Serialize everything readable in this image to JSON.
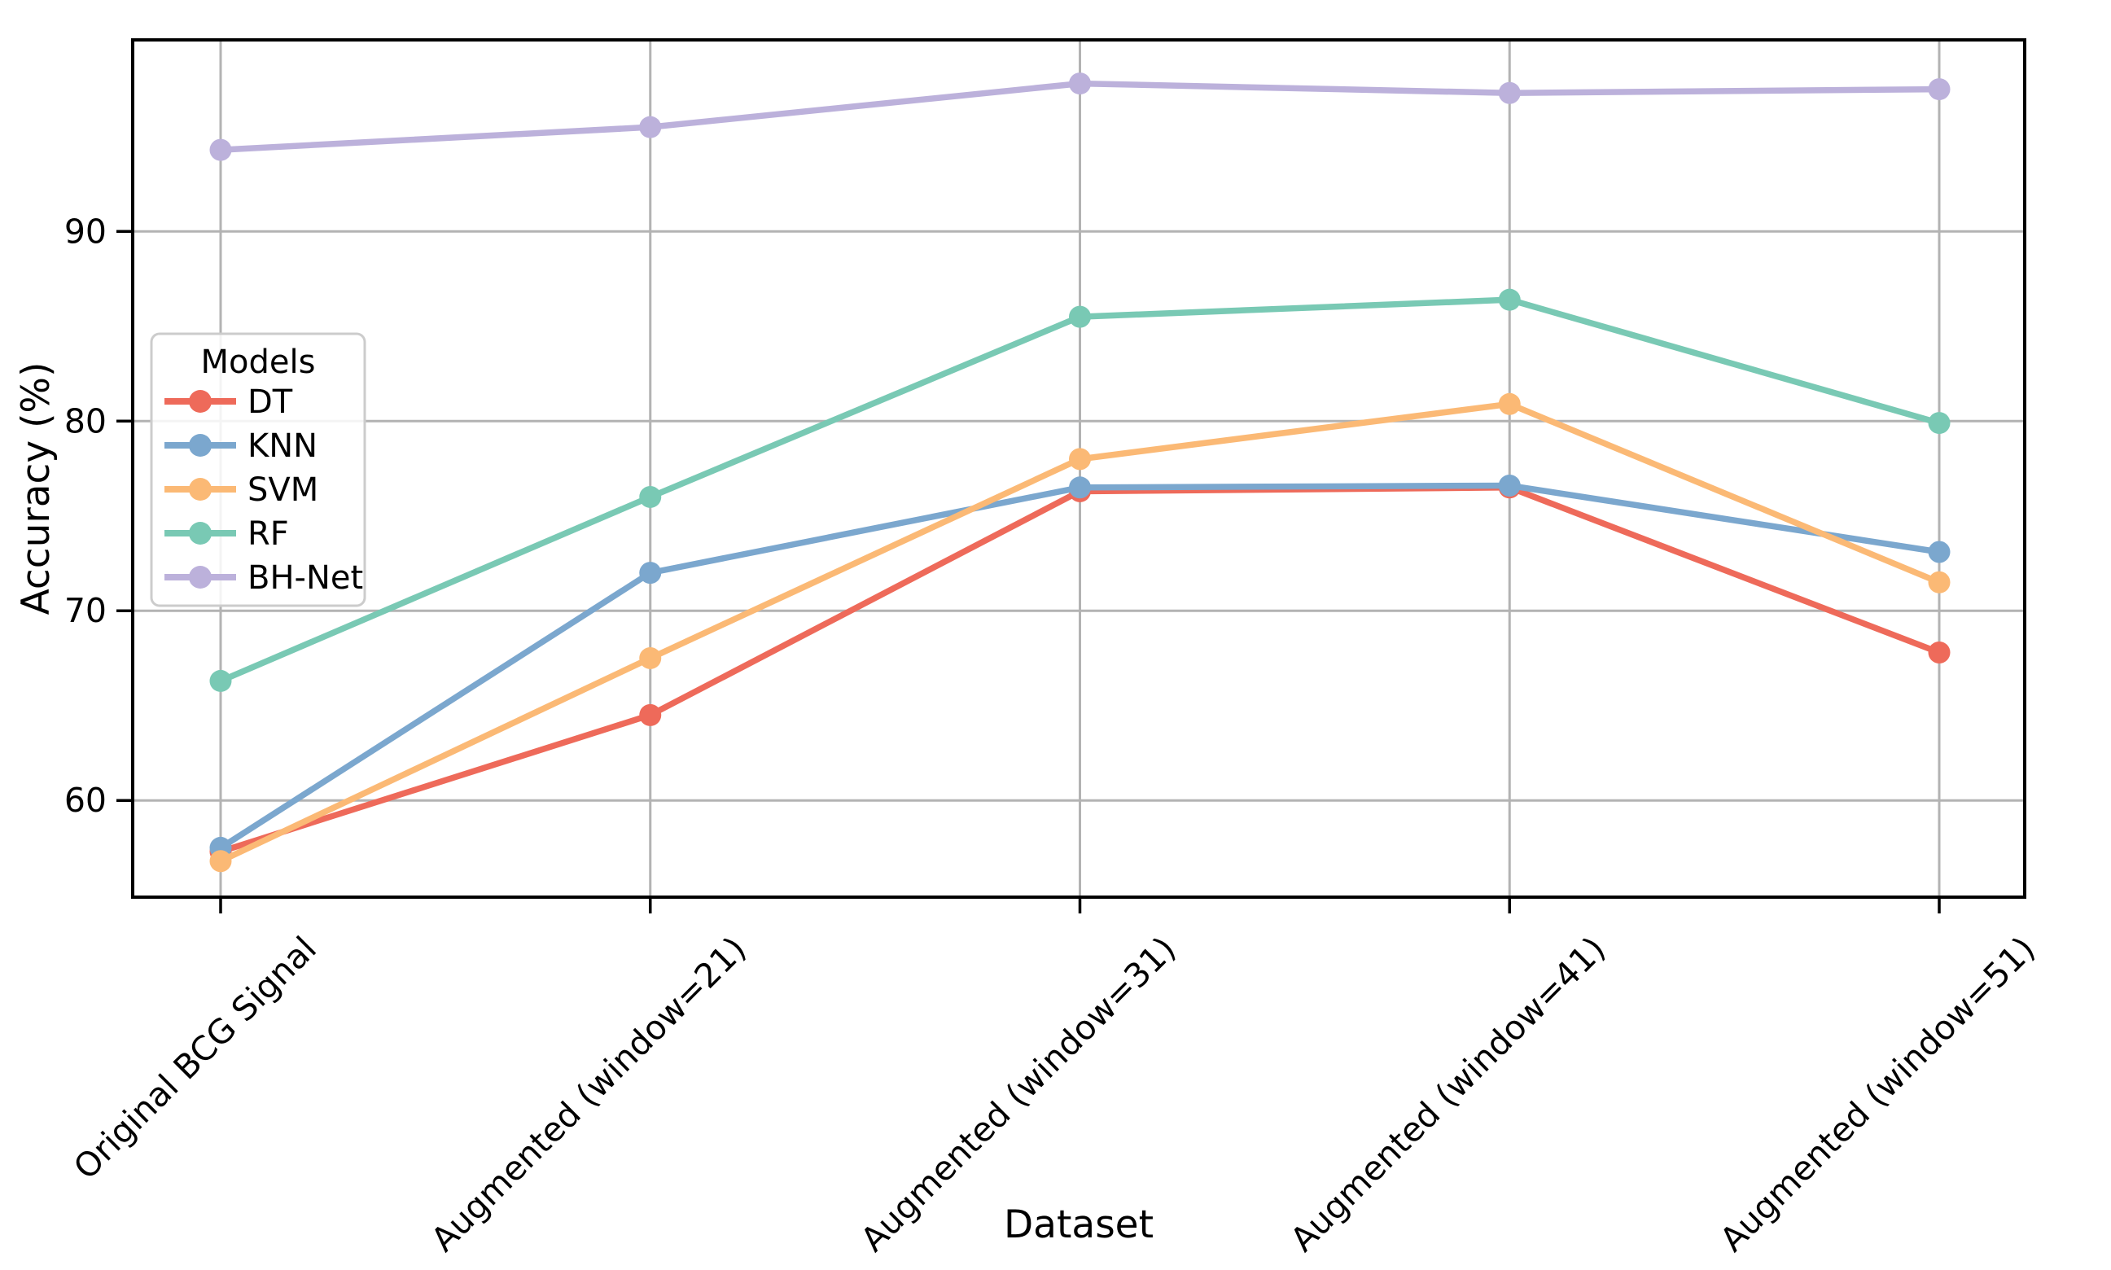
{
  "chart_data": {
    "type": "line",
    "title": "",
    "xlabel": "Dataset",
    "ylabel": "Accuracy (%)",
    "categories": [
      "Original BCG Signal",
      "Augmented (window=21)",
      "Augmented (window=31)",
      "Augmented (window=41)",
      "Augmented (window=51)"
    ],
    "series": [
      {
        "name": "DT",
        "color": "#EE6A5A",
        "values": [
          57.3,
          64.5,
          76.3,
          76.5,
          67.8
        ]
      },
      {
        "name": "KNN",
        "color": "#7BA7CE",
        "values": [
          57.5,
          72.0,
          76.5,
          76.6,
          73.1
        ]
      },
      {
        "name": "SVM",
        "color": "#FBB975",
        "values": [
          56.8,
          67.5,
          78.0,
          80.9,
          71.5
        ]
      },
      {
        "name": "RF",
        "color": "#79C9B4",
        "values": [
          66.3,
          76.0,
          85.5,
          86.4,
          79.9
        ]
      },
      {
        "name": "BH-Net",
        "color": "#BCB1DB",
        "values": [
          94.3,
          95.5,
          97.8,
          97.3,
          97.5
        ]
      }
    ],
    "legend": {
      "title": "Models",
      "position": "upper-left-inside"
    },
    "y_ticks": [
      60,
      70,
      80,
      90
    ],
    "ylim": [
      54.9,
      100.1
    ],
    "grid": true,
    "grid_color": "#b3b3b3",
    "spine_color": "#000000",
    "marker": "o"
  }
}
